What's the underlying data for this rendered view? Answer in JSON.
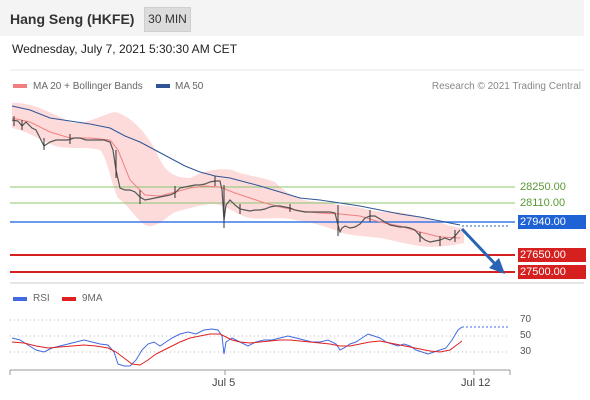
{
  "header": {
    "instrument": "Hang Seng (HKFE)",
    "timeframe": "30 MIN"
  },
  "timestamp": "Wednesday, July 7, 2021 5:30:30 AM CET",
  "legend": {
    "ma20_label": "MA 20 + Bollinger Bands",
    "ma50_label": "MA 50",
    "copyright": "Research © 2021 Trading Central",
    "rsi_label": "RSI",
    "rsi_ma_label": "9MA"
  },
  "colors": {
    "ma20": "#f08080",
    "ma50": "#2f5597",
    "band_fill": "#fbd5d3",
    "resistance": "#8dc76f",
    "pivot": "#3b78e7",
    "support": "#d62020",
    "arrow": "#2a64b4",
    "rsi": "#4169e1",
    "rsi_ma": "#e02020"
  },
  "levels": [
    {
      "label": "28250.00",
      "type": "resistance"
    },
    {
      "label": "28110.00",
      "type": "resistance"
    },
    {
      "label": "27940.00",
      "type": "pivot"
    },
    {
      "label": "27650.00",
      "type": "support"
    },
    {
      "label": "27500.00",
      "type": "support"
    }
  ],
  "rsi_levels": [
    "70",
    "50",
    "30"
  ],
  "x_axis": {
    "ticks": [
      "Jul 5",
      "Jul 12"
    ]
  },
  "chart_data": {
    "type": "line",
    "title": "Hang Seng (HKFE)",
    "price_range_approx": [
      27450,
      28900
    ],
    "series": [
      {
        "name": "Price",
        "values": [
          28700,
          28690,
          28650,
          28560,
          28600,
          28590,
          28570,
          28580,
          28560,
          28510,
          28200,
          28190,
          28220,
          28200,
          28210,
          28230,
          28270,
          28300,
          28310,
          28140,
          28150,
          28155,
          28150,
          28130,
          28100,
          28100,
          28095,
          28090,
          27990,
          28040,
          28010,
          28010,
          27990,
          27990,
          27990,
          27960,
          27940,
          27900,
          27880,
          27830,
          27855,
          27850,
          27840,
          27920
        ]
      },
      {
        "name": "MA 50",
        "values": [
          28780,
          28720,
          28680,
          28640,
          28610,
          28580,
          28480,
          28400,
          28360,
          28320,
          28280,
          28260,
          28220,
          28200,
          28170,
          28150,
          28120,
          28080,
          28060,
          28050,
          28040,
          28020,
          28000,
          27980,
          27960,
          27940
        ]
      }
    ],
    "levels": [
      28250,
      28110,
      27940,
      27650,
      27500
    ],
    "rsi": {
      "levels": [
        70,
        50,
        30
      ],
      "last": 70
    }
  }
}
